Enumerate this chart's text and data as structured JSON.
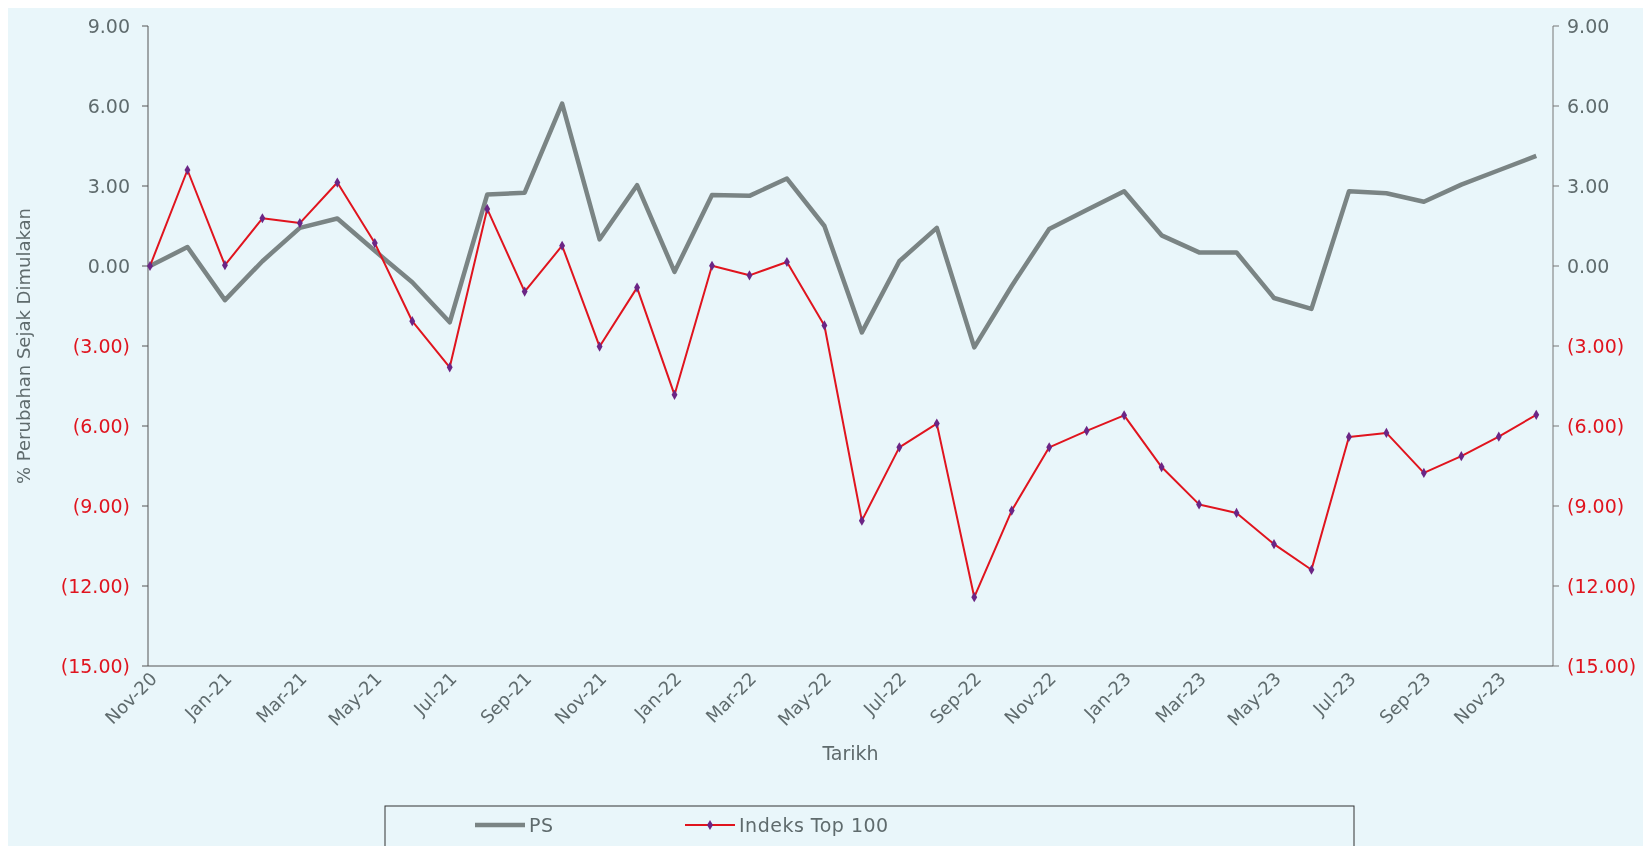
{
  "chart_data": {
    "type": "line",
    "xlabel": "Tarikh",
    "ylabel": "% Perubahan Sejak Dimulakan",
    "categories": [
      "Nov-20",
      null,
      "Jan-21",
      null,
      "Mar-21",
      null,
      "May-21",
      null,
      "Jul-21",
      null,
      "Sep-21",
      null,
      "Nov-21",
      null,
      "Jan-22",
      null,
      "Mar-22",
      null,
      "May-22",
      null,
      "Jul-22",
      null,
      "Sep-22",
      null,
      "Nov-22",
      null,
      "Jan-23",
      null,
      "Mar-23",
      null,
      "May-23",
      null,
      "Jul-23",
      null,
      "Sep-23",
      null,
      "Nov-23",
      null
    ],
    "series": [
      {
        "name": "PS",
        "color": "#7a8484",
        "marker": "none",
        "values": [
          0,
          0.71,
          -1.28,
          0.18,
          1.43,
          1.78,
          0.57,
          -0.61,
          -2.11,
          2.68,
          2.75,
          6.09,
          1.0,
          3.03,
          -0.22,
          2.66,
          2.63,
          3.28,
          1.5,
          -2.49,
          0.18,
          1.43,
          -3.05,
          -0.75,
          1.39,
          2.1,
          2.8,
          1.15,
          0.51,
          0.51,
          -1.2,
          -1.61,
          2.8,
          2.73,
          2.41,
          3.05,
          3.59,
          4.13
        ]
      },
      {
        "name": "Indeks Top 100",
        "color": "#e0141e",
        "marker": "diamond",
        "values": [
          0,
          3.6,
          0.03,
          1.79,
          1.61,
          3.13,
          0.86,
          -2.07,
          -3.8,
          2.14,
          -0.96,
          0.76,
          -3.02,
          -0.81,
          -4.83,
          0.01,
          -0.35,
          0.15,
          -2.23,
          -9.55,
          -6.8,
          -5.91,
          -12.42,
          -9.17,
          -6.8,
          -6.18,
          -5.6,
          -7.54,
          -8.94,
          -9.26,
          -10.43,
          -11.39,
          -6.41,
          -6.26,
          -7.76,
          -7.13,
          -6.4,
          -5.58
        ]
      }
    ],
    "ylim": [
      -15,
      9
    ],
    "yticks": [
      {
        "value": 9,
        "label": "9.00"
      },
      {
        "value": 6,
        "label": "6.00"
      },
      {
        "value": 3,
        "label": "3.00"
      },
      {
        "value": 0,
        "label": "0.00"
      },
      {
        "value": -3,
        "label": "(3.00)"
      },
      {
        "value": -6,
        "label": "(6.00)"
      },
      {
        "value": -9,
        "label": "(9.00)"
      },
      {
        "value": -12,
        "label": "(12.00)"
      },
      {
        "value": -15,
        "label": "(15.00)"
      }
    ],
    "y2lim": [
      -15,
      9
    ],
    "y2ticks": [
      {
        "value": 9,
        "label": "9.00"
      },
      {
        "value": 6,
        "label": "6.00"
      },
      {
        "value": 3,
        "label": "3.00"
      },
      {
        "value": 0,
        "label": "0.00"
      },
      {
        "value": -3,
        "label": "(3.00)"
      },
      {
        "value": -6,
        "label": "(6.00)"
      },
      {
        "value": -9,
        "label": "(9.00)"
      },
      {
        "value": -12,
        "label": "(12.00)"
      },
      {
        "value": -15,
        "label": "(15.00)"
      }
    ],
    "legend": "bottom",
    "grid": false
  }
}
